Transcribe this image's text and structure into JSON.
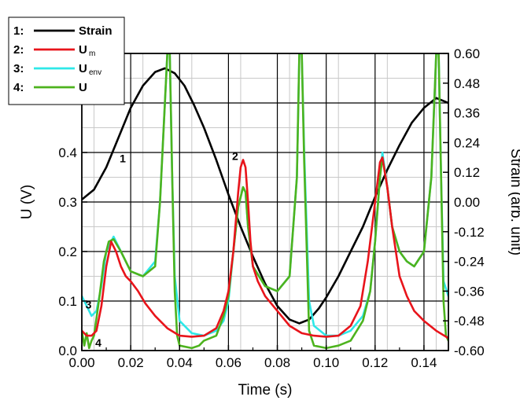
{
  "chart_data": {
    "type": "line",
    "xlabel": "Time (s)",
    "ylabel": "U (V)",
    "y2label": "Strain (arb. unit)",
    "xlim": [
      0.0,
      0.15
    ],
    "ylim": [
      0.0,
      0.6
    ],
    "y2lim": [
      -0.6,
      0.6
    ],
    "grid": true,
    "x_ticks": [
      "0.00",
      "0.02",
      "0.04",
      "0.06",
      "0.08",
      "0.10",
      "0.12",
      "0.14"
    ],
    "x_tick_values": [
      0.0,
      0.02,
      0.04,
      0.06,
      0.08,
      0.1,
      0.12,
      0.14
    ],
    "y_ticks": [
      "0.0",
      "0.1",
      "0.2",
      "0.3",
      "0.4"
    ],
    "y_tick_values": [
      0.0,
      0.1,
      0.2,
      0.3,
      0.4
    ],
    "y2_ticks": [
      "0.60",
      "0.48",
      "0.36",
      "0.24",
      "0.12",
      "0.00",
      "-0.12",
      "-0.24",
      "-0.36",
      "-0.48",
      "-0.60"
    ],
    "y2_tick_values": [
      0.6,
      0.48,
      0.36,
      0.24,
      0.12,
      0.0,
      -0.12,
      -0.24,
      -0.36,
      -0.48,
      -0.6
    ],
    "legend_position": "top-left",
    "legend": [
      {
        "num": "1:",
        "label": "Strain",
        "sub": ""
      },
      {
        "num": "2:",
        "label": "U",
        "sub": "m"
      },
      {
        "num": "3:",
        "label": "U",
        "sub": "env"
      },
      {
        "num": "4:",
        "label": "U",
        "sub": ""
      }
    ],
    "annotations": [
      {
        "text": "1",
        "x": 0.0155,
        "y": 0.38
      },
      {
        "text": "2",
        "x": 0.0615,
        "y": 0.385
      },
      {
        "text": "3",
        "x": 0.0015,
        "y": 0.085
      },
      {
        "text": "4",
        "x": 0.0055,
        "y": 0.008
      }
    ],
    "series": [
      {
        "name": "Strain",
        "color": "#000000",
        "axis": "y2",
        "x": [
          0.0,
          0.005,
          0.01,
          0.015,
          0.02,
          0.025,
          0.03,
          0.034,
          0.038,
          0.042,
          0.046,
          0.05,
          0.055,
          0.06,
          0.065,
          0.07,
          0.075,
          0.08,
          0.085,
          0.089,
          0.093,
          0.097,
          0.1,
          0.105,
          0.11,
          0.115,
          0.12,
          0.125,
          0.13,
          0.135,
          0.14,
          0.145,
          0.15
        ],
        "values": [
          0.01,
          0.05,
          0.14,
          0.26,
          0.38,
          0.47,
          0.525,
          0.54,
          0.52,
          0.47,
          0.39,
          0.3,
          0.17,
          0.03,
          -0.1,
          -0.22,
          -0.33,
          -0.42,
          -0.475,
          -0.49,
          -0.475,
          -0.43,
          -0.385,
          -0.3,
          -0.2,
          -0.1,
          0.02,
          0.13,
          0.23,
          0.32,
          0.38,
          0.42,
          0.4
        ]
      },
      {
        "name": "Um",
        "color": "#e8141b",
        "axis": "y",
        "x": [
          0.0,
          0.002,
          0.004,
          0.006,
          0.008,
          0.01,
          0.012,
          0.014,
          0.016,
          0.018,
          0.02,
          0.023,
          0.026,
          0.03,
          0.035,
          0.04,
          0.045,
          0.05,
          0.055,
          0.058,
          0.06,
          0.062,
          0.064,
          0.065,
          0.066,
          0.067,
          0.068,
          0.069,
          0.07,
          0.072,
          0.075,
          0.08,
          0.085,
          0.09,
          0.095,
          0.1,
          0.105,
          0.11,
          0.114,
          0.117,
          0.12,
          0.122,
          0.123,
          0.125,
          0.127,
          0.13,
          0.133,
          0.136,
          0.14,
          0.145,
          0.15
        ],
        "values": [
          0.04,
          0.03,
          0.03,
          0.04,
          0.09,
          0.17,
          0.22,
          0.2,
          0.17,
          0.15,
          0.14,
          0.12,
          0.095,
          0.07,
          0.045,
          0.03,
          0.028,
          0.03,
          0.045,
          0.08,
          0.12,
          0.2,
          0.32,
          0.37,
          0.385,
          0.37,
          0.3,
          0.22,
          0.17,
          0.14,
          0.11,
          0.08,
          0.05,
          0.035,
          0.03,
          0.028,
          0.03,
          0.05,
          0.09,
          0.18,
          0.3,
          0.38,
          0.39,
          0.33,
          0.25,
          0.15,
          0.11,
          0.08,
          0.06,
          0.04,
          0.025
        ]
      },
      {
        "name": "Uenv",
        "color": "#2ee8e8",
        "axis": "y",
        "x": [
          0.0,
          0.002,
          0.004,
          0.006,
          0.008,
          0.01,
          0.013,
          0.016,
          0.02,
          0.025,
          0.03,
          0.032,
          0.034,
          0.035,
          0.0355,
          0.036,
          0.037,
          0.038,
          0.04,
          0.045,
          0.05,
          0.055,
          0.058,
          0.06,
          0.062,
          0.064,
          0.066,
          0.067,
          0.068,
          0.07,
          0.075,
          0.08,
          0.085,
          0.088,
          0.089,
          0.0895,
          0.09,
          0.091,
          0.093,
          0.095,
          0.1,
          0.105,
          0.11,
          0.115,
          0.118,
          0.12,
          0.122,
          0.123,
          0.125,
          0.127,
          0.13,
          0.133,
          0.136,
          0.14,
          0.143,
          0.145,
          0.1455,
          0.146,
          0.147,
          0.148,
          0.15
        ],
        "values": [
          0.11,
          0.09,
          0.07,
          0.08,
          0.13,
          0.2,
          0.23,
          0.2,
          0.16,
          0.15,
          0.18,
          0.3,
          0.5,
          0.6,
          0.6,
          0.6,
          0.35,
          0.15,
          0.06,
          0.035,
          0.03,
          0.04,
          0.06,
          0.1,
          0.2,
          0.29,
          0.33,
          0.32,
          0.25,
          0.17,
          0.13,
          0.12,
          0.15,
          0.35,
          0.6,
          0.6,
          0.6,
          0.4,
          0.1,
          0.05,
          0.03,
          0.03,
          0.04,
          0.07,
          0.12,
          0.22,
          0.35,
          0.4,
          0.33,
          0.25,
          0.2,
          0.18,
          0.17,
          0.2,
          0.35,
          0.6,
          0.6,
          0.6,
          0.35,
          0.14,
          0.11
        ]
      },
      {
        "name": "U",
        "color": "#4db31e",
        "axis": "y",
        "x": [
          0.0,
          0.001,
          0.002,
          0.003,
          0.004,
          0.005,
          0.007,
          0.009,
          0.011,
          0.013,
          0.016,
          0.02,
          0.025,
          0.03,
          0.032,
          0.034,
          0.035,
          0.0355,
          0.036,
          0.037,
          0.038,
          0.039,
          0.04,
          0.045,
          0.048,
          0.05,
          0.055,
          0.058,
          0.06,
          0.062,
          0.064,
          0.066,
          0.067,
          0.068,
          0.07,
          0.075,
          0.08,
          0.085,
          0.088,
          0.089,
          0.0895,
          0.09,
          0.091,
          0.093,
          0.095,
          0.1,
          0.105,
          0.11,
          0.115,
          0.118,
          0.12,
          0.122,
          0.123,
          0.125,
          0.127,
          0.13,
          0.133,
          0.136,
          0.14,
          0.143,
          0.145,
          0.1455,
          0.146,
          0.147,
          0.148,
          0.149,
          0.15
        ],
        "values": [
          0.04,
          0.01,
          0.035,
          0.005,
          0.02,
          0.03,
          0.1,
          0.18,
          0.22,
          0.225,
          0.2,
          0.16,
          0.15,
          0.17,
          0.3,
          0.5,
          0.6,
          0.6,
          0.6,
          0.35,
          0.12,
          0.03,
          0.01,
          0.005,
          0.01,
          0.02,
          0.03,
          0.07,
          0.11,
          0.2,
          0.29,
          0.33,
          0.32,
          0.25,
          0.17,
          0.13,
          0.12,
          0.15,
          0.35,
          0.6,
          0.6,
          0.6,
          0.38,
          0.04,
          0.01,
          0.005,
          0.01,
          0.02,
          0.06,
          0.12,
          0.22,
          0.35,
          0.39,
          0.33,
          0.25,
          0.2,
          0.18,
          0.17,
          0.2,
          0.35,
          0.6,
          0.6,
          0.6,
          0.35,
          0.1,
          0.03,
          0.02
        ]
      }
    ]
  }
}
